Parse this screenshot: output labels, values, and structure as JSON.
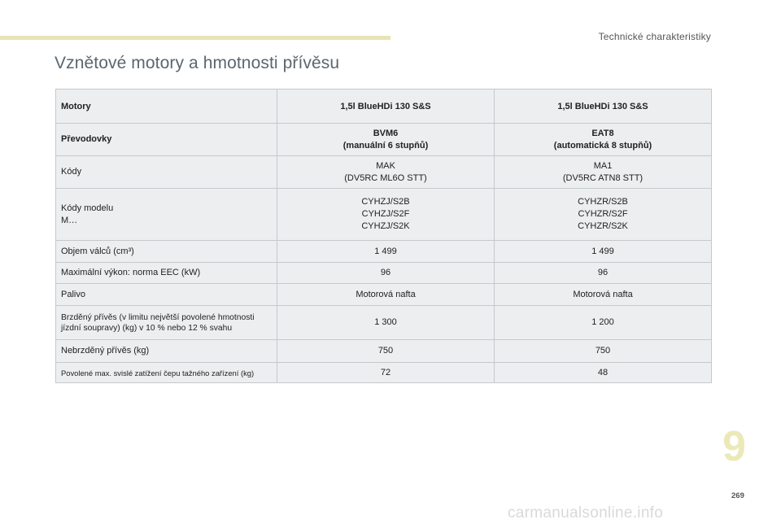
{
  "header": {
    "section_label": "Technické charakteristiky",
    "accent_color": "#e8e3b4"
  },
  "title": "Vznětové motory a hmotnosti přívěsu",
  "table": {
    "columns": [
      "Motory",
      "1,5l BlueHDi 130 S&S",
      "1,5l BlueHDi 130 S&S"
    ],
    "rows": [
      {
        "label": [
          "Převodovky"
        ],
        "col1": [
          "BVM6",
          "(manuální 6 stupňů)"
        ],
        "col2": [
          "EAT8",
          "(automatická 8 stupňů)"
        ]
      },
      {
        "label": [
          "Kódy"
        ],
        "col1": [
          "MAK",
          "(DV5RC ML6O STT)"
        ],
        "col2": [
          "MA1",
          "(DV5RC ATN8 STT)"
        ]
      },
      {
        "label": [
          "Kódy modelu",
          "M…"
        ],
        "col1": [
          "CYHZJ/S2B",
          "CYHZJ/S2F",
          "CYHZJ/S2K"
        ],
        "col2": [
          "CYHZR/S2B",
          "CYHZR/S2F",
          "CYHZR/S2K"
        ]
      },
      {
        "label": [
          "Objem válců (cm³)"
        ],
        "col1": [
          "1 499"
        ],
        "col2": [
          "1 499"
        ]
      },
      {
        "label": [
          "Maximální výkon: norma EEC (kW)"
        ],
        "col1": [
          "96"
        ],
        "col2": [
          "96"
        ]
      },
      {
        "label": [
          "Palivo"
        ],
        "col1": [
          "Motorová nafta"
        ],
        "col2": [
          "Motorová nafta"
        ]
      },
      {
        "label": [
          "Brzděný přívěs (v limitu největší povolené hmotnosti",
          "jízdní soupravy) (kg) v 10 % nebo 12 % svahu"
        ],
        "col1": [
          "1 300"
        ],
        "col2": [
          "1 200"
        ]
      },
      {
        "label": [
          "Nebrzděný přívěs (kg)"
        ],
        "col1": [
          "750"
        ],
        "col2": [
          "750"
        ]
      },
      {
        "label": [
          "Povolené max. svislé zatížení čepu tažného zařízení (kg)"
        ],
        "col1": [
          "72"
        ],
        "col2": [
          "48"
        ]
      }
    ]
  },
  "chapter_number": "9",
  "page_number": "269",
  "watermark": "carmanualsonline.info"
}
